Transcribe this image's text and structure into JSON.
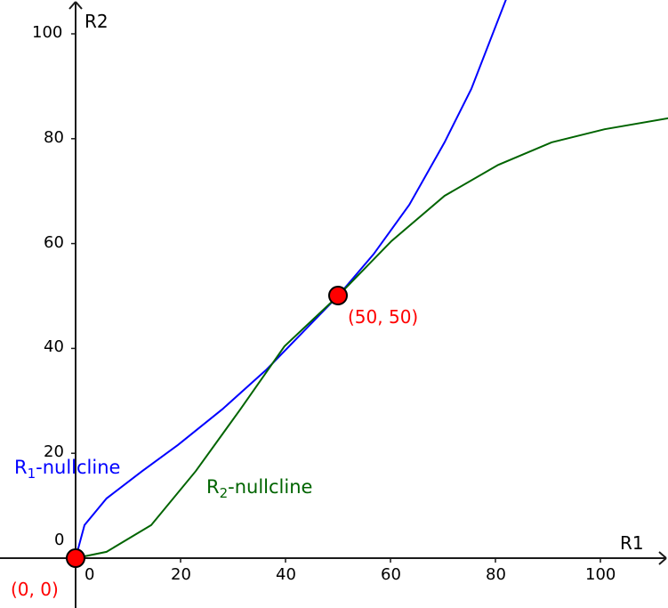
{
  "chart_data": {
    "type": "line",
    "title": "",
    "xlabel": "R1",
    "ylabel": "R2",
    "xlim": [
      -14.4,
      113
    ],
    "ylim": [
      -9.3,
      106.5
    ],
    "grid": false,
    "x_ticks": [
      0,
      20,
      40,
      60,
      80,
      100
    ],
    "y_ticks": [
      0,
      20,
      40,
      60,
      80,
      100
    ],
    "series": [
      {
        "name": "R1-nullcline",
        "color": "#0000ff",
        "points": [
          [
            0,
            0
          ],
          [
            1.7,
            6.3
          ],
          [
            5.9,
            11.4
          ],
          [
            12.7,
            16.6
          ],
          [
            19.5,
            21.6
          ],
          [
            27.966,
            28.4
          ],
          [
            36.4,
            36.0
          ],
          [
            50,
            50
          ],
          [
            56.8,
            58.0
          ],
          [
            63.6,
            67.4
          ],
          [
            70.3,
            79.3
          ],
          [
            75.4,
            89.5
          ],
          [
            82,
            106.5
          ]
        ]
      },
      {
        "name": "R2-nullcline",
        "color": "#006400",
        "points": [
          [
            0,
            0
          ],
          [
            5.9,
            1.2
          ],
          [
            14.4,
            6.3
          ],
          [
            22.9,
            16.6
          ],
          [
            31.4,
            28.4
          ],
          [
            39.8,
            40.4
          ],
          [
            50,
            50
          ],
          [
            60.2,
            60.5
          ],
          [
            70.3,
            69.1
          ],
          [
            80.5,
            75.0
          ],
          [
            90.7,
            79.3
          ],
          [
            100.8,
            81.8
          ],
          [
            113,
            83.9
          ]
        ]
      }
    ],
    "annotations": [
      {
        "label": "(0, 0)",
        "x": 0,
        "y": 0,
        "color": "#ff0000"
      },
      {
        "label": "(50, 50)",
        "x": 50,
        "y": 50,
        "color": "#ff0000"
      }
    ]
  },
  "axes": {
    "x_label": "R1",
    "y_label": "R2",
    "x_ticks": [
      "0",
      "20",
      "40",
      "60",
      "80",
      "100"
    ],
    "y_ticks": [
      "0",
      "20",
      "40",
      "60",
      "80",
      "100"
    ]
  },
  "labels": {
    "r1_main": "R",
    "r1_sub": "1",
    "r1_rest": "-nullcline",
    "r2_main": "R",
    "r2_sub": "2",
    "r2_rest": "-nullcline",
    "origin_point": "(0, 0)",
    "equilibrium_point": "(50, 50)"
  }
}
